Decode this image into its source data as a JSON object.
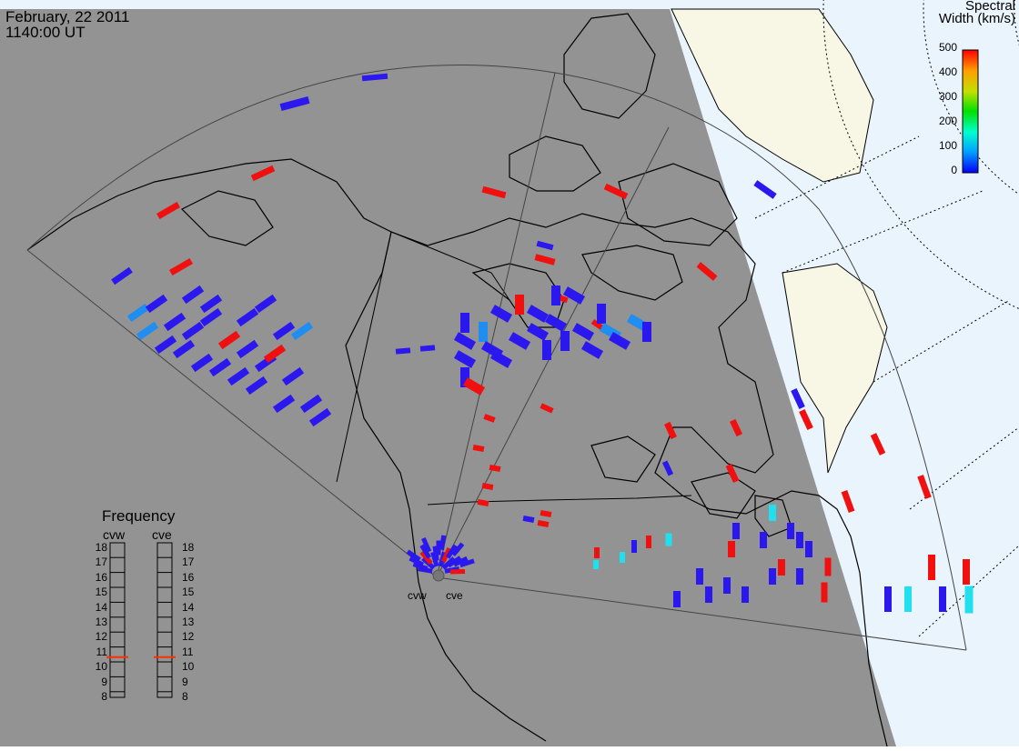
{
  "header": {
    "date": "February, 22 2011",
    "time": "1140:00 UT"
  },
  "colorbar": {
    "title_line1": "Spectral",
    "title_line2": "Width (km/s)",
    "ticks": [
      "500",
      "400",
      "300",
      "200",
      "100",
      "0"
    ],
    "gradient": [
      "#0000ff",
      "#00a0ff",
      "#00ffd0",
      "#00e000",
      "#c0e000",
      "#ffa000",
      "#ff0000"
    ]
  },
  "frequency_panel": {
    "title": "Frequency",
    "radars": [
      "cvw",
      "cve"
    ],
    "scale": [
      "18",
      "17",
      "16",
      "15",
      "14",
      "13",
      "12",
      "11",
      "10",
      "9",
      "8"
    ],
    "selected_mhz": {
      "cvw": 10.7,
      "cve": 10.7
    },
    "marker_color": "#ff3000"
  },
  "stations": [
    "cvw",
    "cve"
  ],
  "colors": {
    "night": "#939393",
    "day_land": "#f8f6e4",
    "day_ocean": "#eaf4fc",
    "echo_blue": "#2b18ee",
    "echo_red": "#f01010",
    "echo_cyan": "#20e0f0",
    "echo_lightblue": "#1f8ef0"
  }
}
